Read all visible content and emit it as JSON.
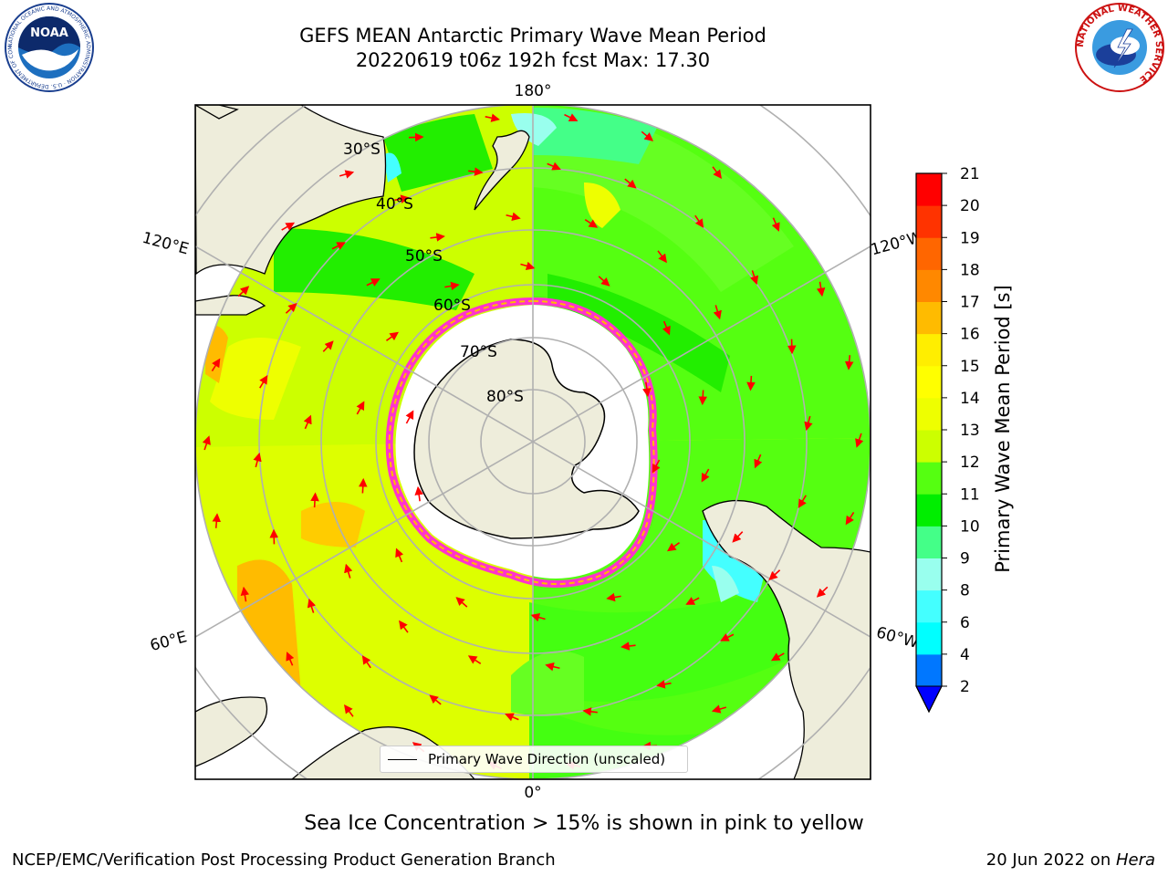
{
  "header": {
    "title_line1": "GEFS MEAN Antarctic Primary Wave Mean Period",
    "title_line2": "20220619 t06z 192h fcst   Max: 17.30"
  },
  "logos": {
    "noaa_text": "NOAA",
    "noaa_ring_text": "NATIONAL OCEANIC AND ATMOSPHERIC ADMINISTRATION · U.S. DEPARTMENT OF COMMERCE",
    "nws_ring_text": "NATIONAL WEATHER SERVICE"
  },
  "map": {
    "longitude_labels": {
      "top": "180°",
      "bottom": "0°",
      "left_upper": "120°E",
      "left_lower": "60°E",
      "right_upper": "120°W",
      "right_lower": "60°W"
    },
    "latitude_labels": [
      "30°S",
      "40°S",
      "50°S",
      "60°S",
      "70°S",
      "80°S"
    ],
    "legend_label": "Primary Wave Direction (unscaled)"
  },
  "colorbar": {
    "label": "Primary Wave Mean Period [s]",
    "levels": [
      {
        "value": "2",
        "color": "#0000ff"
      },
      {
        "value": "4",
        "color": "#0077ff"
      },
      {
        "value": "6",
        "color": "#00ffff"
      },
      {
        "value": "8",
        "color": "#44ffff"
      },
      {
        "value": "9",
        "color": "#99ffee"
      },
      {
        "value": "10",
        "color": "#44ff88"
      },
      {
        "value": "11",
        "color": "#00ee00"
      },
      {
        "value": "12",
        "color": "#55ff11"
      },
      {
        "value": "13",
        "color": "#ccff00"
      },
      {
        "value": "14",
        "color": "#eeff00"
      },
      {
        "value": "15",
        "color": "#ffff00"
      },
      {
        "value": "16",
        "color": "#ffee00"
      },
      {
        "value": "17",
        "color": "#ffbb00"
      },
      {
        "value": "18",
        "color": "#ff8800"
      },
      {
        "value": "19",
        "color": "#ff6600"
      },
      {
        "value": "20",
        "color": "#ff3300"
      },
      {
        "value": "21",
        "color": "#ff0000"
      }
    ],
    "under_color": "#0000ff"
  },
  "note": "Sea Ice Concentration > 15% is shown in pink to yellow",
  "footer": {
    "left": "NCEP/EMC/Verification Post Processing Product Generation Branch",
    "right_date": "20 Jun 2022 on ",
    "right_machine": "Hera"
  }
}
